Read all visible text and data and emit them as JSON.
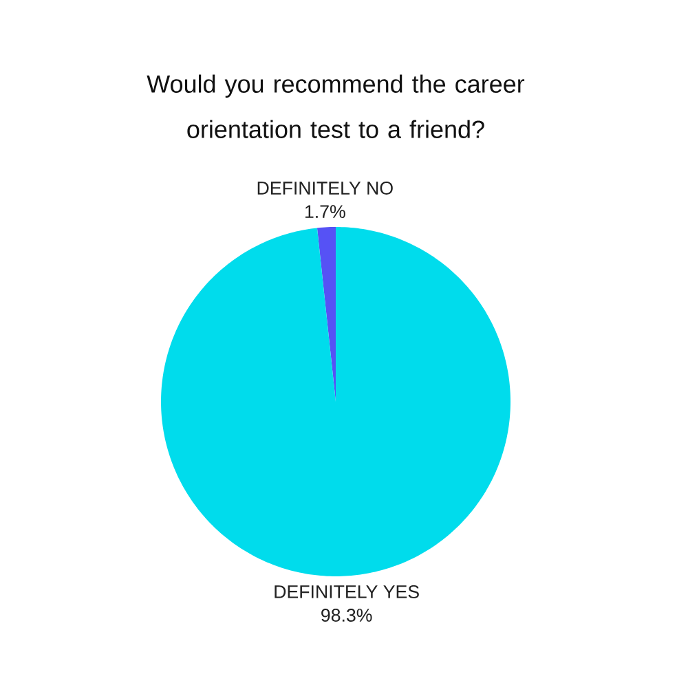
{
  "chart_data": {
    "type": "pie",
    "title": "Would you recommend the career orientation test to a friend?",
    "categories": [
      "DEFINITELY NO",
      "DEFINITELY YES"
    ],
    "values": [
      1.7,
      98.3
    ],
    "colors": [
      "#5652f5",
      "#00dcec"
    ],
    "value_labels": [
      "1.7%",
      "98.3%"
    ]
  }
}
